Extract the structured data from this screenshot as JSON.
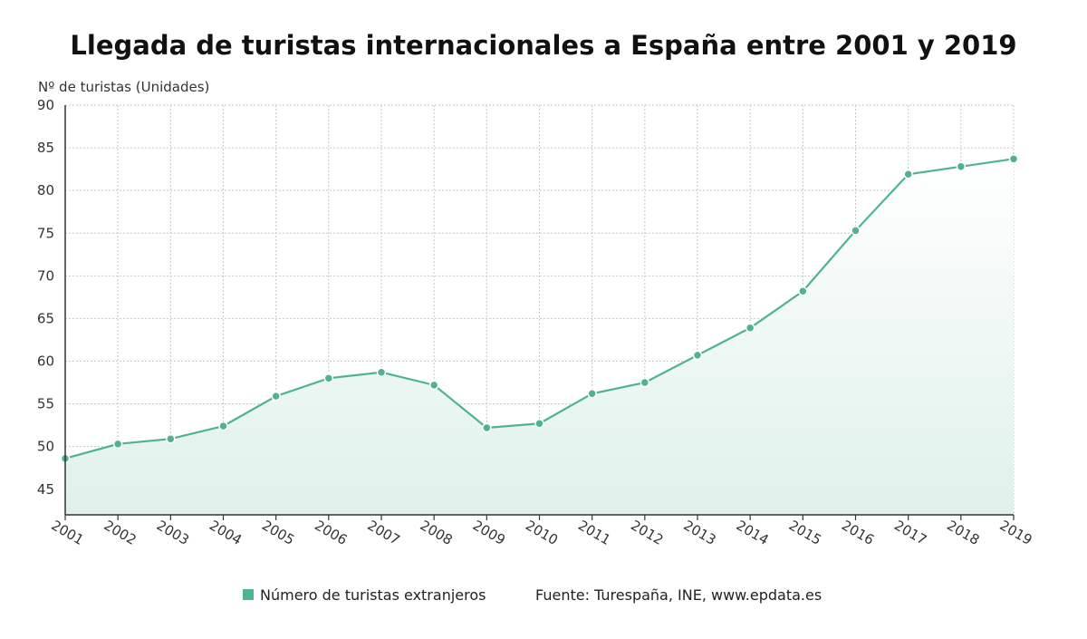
{
  "chart_data": {
    "type": "area",
    "title": "Llegada de turistas internacionales a España entre 2001 y 2019",
    "ylabel": "Nº de turistas (Unidades)",
    "xlabel": "",
    "x": [
      "2001",
      "2002",
      "2003",
      "2004",
      "2005",
      "2006",
      "2007",
      "2008",
      "2009",
      "2010",
      "2011",
      "2012",
      "2013",
      "2014",
      "2015",
      "2016",
      "2017",
      "2018",
      "2019"
    ],
    "series": [
      {
        "name": "Número de turistas extranjeros",
        "values": [
          48.6,
          50.3,
          50.9,
          52.4,
          55.9,
          58.0,
          58.7,
          57.2,
          52.2,
          52.7,
          56.2,
          57.5,
          60.7,
          63.9,
          68.2,
          75.3,
          81.9,
          82.8,
          83.7
        ]
      }
    ],
    "ylim": [
      42,
      90
    ],
    "yticks": [
      45,
      50,
      55,
      60,
      65,
      70,
      75,
      80,
      85,
      90
    ],
    "grid": true,
    "legend_position": "bottom",
    "source": "Fuente: Turespaña, INE, www.epdata.es",
    "colors": {
      "line": "#4fb393",
      "area_top": "#ffffff",
      "area_bottom": "#dff1ea",
      "grid": "#c8c8c8",
      "axis": "#333333"
    }
  }
}
